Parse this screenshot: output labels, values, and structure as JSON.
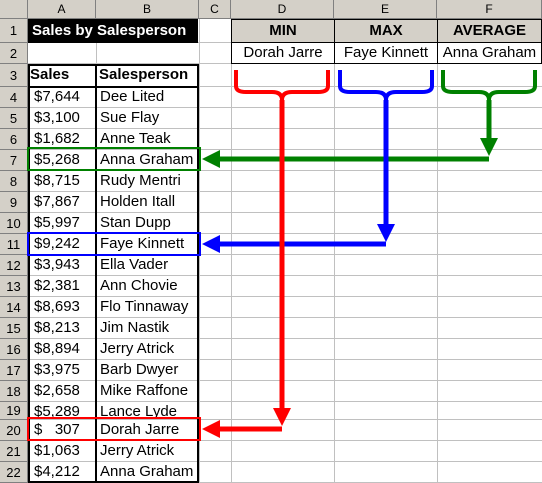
{
  "columns": [
    "A",
    "B",
    "C",
    "D",
    "E",
    "F"
  ],
  "rows": [
    "1",
    "2",
    "3",
    "4",
    "5",
    "6",
    "7",
    "8",
    "9",
    "10",
    "11",
    "12",
    "13",
    "14",
    "15",
    "16",
    "17",
    "18",
    "19",
    "20",
    "21",
    "22"
  ],
  "title": "Sales by Salesperson",
  "headers": {
    "sales": "Sales",
    "salesperson": "Salesperson"
  },
  "data": [
    {
      "sales": "$7,644",
      "name": "Dee Lited"
    },
    {
      "sales": "$3,100",
      "name": "Sue Flay"
    },
    {
      "sales": "$1,682",
      "name": "Anne Teak"
    },
    {
      "sales": "$5,268",
      "name": "Anna Graham"
    },
    {
      "sales": "$8,715",
      "name": "Rudy Mentri"
    },
    {
      "sales": "$7,867",
      "name": "Holden Itall"
    },
    {
      "sales": "$5,997",
      "name": "Stan Dupp"
    },
    {
      "sales": "$9,242",
      "name": "Faye Kinnett"
    },
    {
      "sales": "$3,943",
      "name": "Ella Vader"
    },
    {
      "sales": "$2,381",
      "name": "Ann Chovie"
    },
    {
      "sales": "$8,693",
      "name": "Flo Tinnaway"
    },
    {
      "sales": "$8,213",
      "name": "Jim Nastik"
    },
    {
      "sales": "$8,894",
      "name": "Jerry Atrick"
    },
    {
      "sales": "$3,975",
      "name": "Barb Dwyer"
    },
    {
      "sales": "$2,658",
      "name": "Mike Raffone"
    },
    {
      "sales": "$5,289",
      "name": "Lance Lyde"
    },
    {
      "sales": "$   307",
      "name": "Dorah Jarre"
    },
    {
      "sales": "$1,063",
      "name": "Jerry Atrick"
    },
    {
      "sales": "$4,212",
      "name": "Anna Graham"
    }
  ],
  "stats": {
    "min_label": "MIN",
    "max_label": "MAX",
    "avg_label": "AVERAGE",
    "min_value": "Dorah Jarre",
    "max_value": "Faye Kinnett",
    "avg_value": "Anna Graham"
  },
  "colors": {
    "min": "#ff0000",
    "max": "#0000ff",
    "average": "#008000"
  }
}
